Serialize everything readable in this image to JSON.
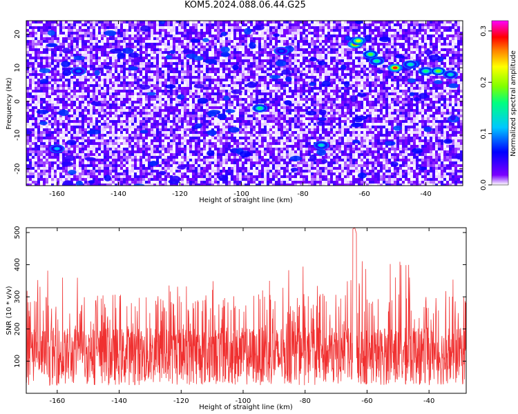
{
  "title": "KOM5.2024.088.06.44.G25",
  "colors": {
    "snr_line": "#f03030",
    "colorbar": [
      "#ffffff",
      "#7b00ff",
      "#0000ff",
      "#00c8ff",
      "#00ff80",
      "#80ff00",
      "#ffff00",
      "#ff8000",
      "#ff0000",
      "#ff00ff"
    ]
  },
  "chart_data": [
    {
      "type": "heatmap",
      "title": "KOM5.2024.088.06.44.G25",
      "xlabel": "Height of straight line (km)",
      "ylabel": "Frequency (Hz)",
      "xlim": [
        -170,
        -28
      ],
      "ylim": [
        -25,
        24
      ],
      "xticks": [
        -160,
        -140,
        -120,
        -100,
        -80,
        -60,
        -40
      ],
      "yticks": [
        -20,
        -10,
        0,
        10,
        20
      ],
      "colorbar": {
        "label": "Normalized spectral amplitude",
        "range": [
          0,
          0.32
        ],
        "ticks": [
          "0.0",
          "0.1",
          "0.2",
          "0.3"
        ],
        "tick_values": [
          0,
          0.1,
          0.2,
          0.3
        ],
        "colormap": "white-purple-blue-cyan-green-yellow-red-magenta"
      },
      "hotspots": [
        {
          "x": -63,
          "y": 17,
          "value": 0.27
        },
        {
          "x": -62,
          "y": 18,
          "value": 0.22
        },
        {
          "x": -58,
          "y": 14,
          "value": 0.18
        },
        {
          "x": -56,
          "y": 12,
          "value": 0.15
        },
        {
          "x": -50,
          "y": 10,
          "value": 0.28
        },
        {
          "x": -45,
          "y": 11,
          "value": 0.14
        },
        {
          "x": -40,
          "y": 9,
          "value": 0.16
        },
        {
          "x": -36,
          "y": 9,
          "value": 0.19
        },
        {
          "x": -32,
          "y": 8,
          "value": 0.13
        },
        {
          "x": -94,
          "y": -2,
          "value": 0.16
        },
        {
          "x": -74,
          "y": -13,
          "value": 0.13
        },
        {
          "x": -160,
          "y": -14,
          "value": 0.11
        },
        {
          "x": -153,
          "y": 9,
          "value": 0.09
        },
        {
          "x": -87,
          "y": 15,
          "value": 0.08
        }
      ]
    },
    {
      "type": "line",
      "xlabel": "Height of straight line (km)",
      "ylabel": "SNR (10 * v/v)",
      "xlim": [
        -170,
        -28
      ],
      "ylim": [
        0,
        515
      ],
      "xticks": [
        -160,
        -140,
        -120,
        -100,
        -80,
        -60,
        -40
      ],
      "yticks": [
        100,
        200,
        300,
        400,
        500
      ],
      "series": [
        {
          "x_start": -170,
          "x_end": -28,
          "n_points": 1600,
          "baseline": 125,
          "typical_peaks": 330,
          "envelope": [
            {
              "x": -170,
              "peak": 380
            },
            {
              "x": -160,
              "peak": 390
            },
            {
              "x": -140,
              "peak": 320
            },
            {
              "x": -120,
              "peak": 365
            },
            {
              "x": -100,
              "peak": 340
            },
            {
              "x": -80,
              "peak": 400
            },
            {
              "x": -64,
              "peak": 515
            },
            {
              "x": -60,
              "peak": 390
            },
            {
              "x": -50,
              "peak": 440
            },
            {
              "x": -40,
              "peak": 420
            },
            {
              "x": -28,
              "peak": 350
            }
          ]
        }
      ]
    }
  ]
}
